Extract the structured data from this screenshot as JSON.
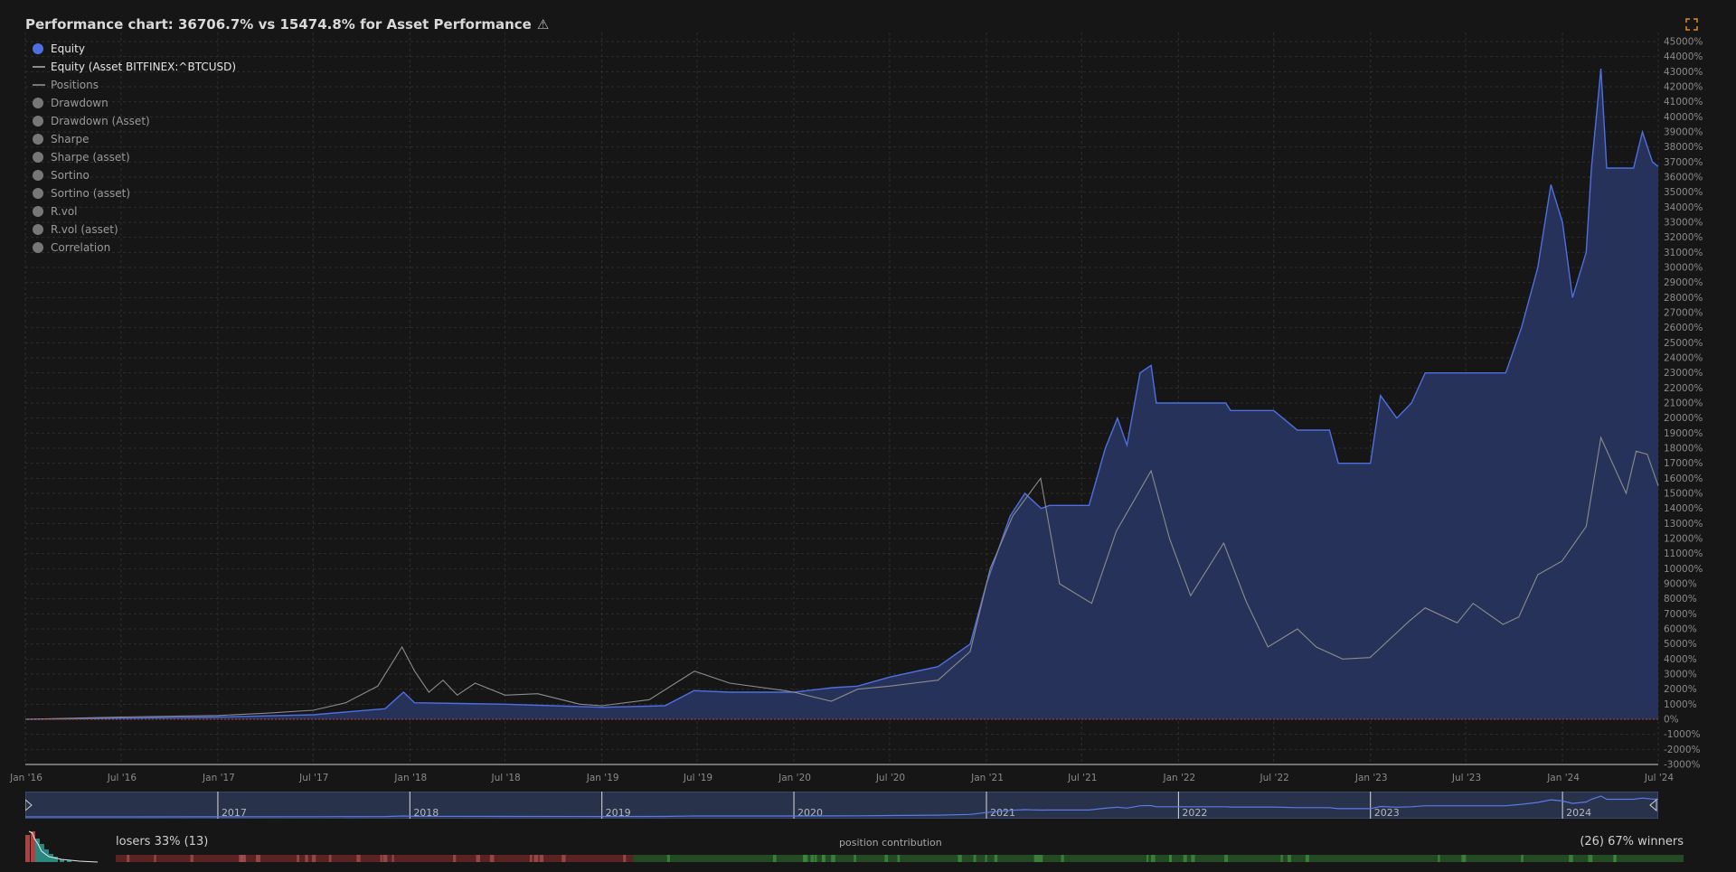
{
  "title": "Performance chart: 36706.7% vs 15474.8% for Asset Performance",
  "legend": [
    {
      "label": "Equity",
      "color": "#4f6fe0",
      "kind": "dot",
      "active": true
    },
    {
      "label": "Equity (Asset BITFINEX:^BTCUSD)",
      "color": "#8a8a8a",
      "kind": "line",
      "active": true
    },
    {
      "label": "Positions",
      "color": "#777777",
      "kind": "line",
      "active": false
    },
    {
      "label": "Drawdown",
      "kind": "dot",
      "active": false
    },
    {
      "label": "Drawdown (Asset)",
      "kind": "dot",
      "active": false
    },
    {
      "label": "Sharpe",
      "kind": "dot",
      "active": false
    },
    {
      "label": "Sharpe (asset)",
      "kind": "dot",
      "active": false
    },
    {
      "label": "Sortino",
      "kind": "dot",
      "active": false
    },
    {
      "label": "Sortino (asset)",
      "kind": "dot",
      "active": false
    },
    {
      "label": "R.vol",
      "kind": "dot",
      "active": false
    },
    {
      "label": "R.vol (asset)",
      "kind": "dot",
      "active": false
    },
    {
      "label": "Correlation",
      "kind": "dot",
      "active": false
    }
  ],
  "chart_data": {
    "type": "area",
    "ylim": [
      -3000,
      45000
    ],
    "yticks": [
      -3000,
      -2000,
      -1000,
      0,
      1000,
      2000,
      3000,
      4000,
      5000,
      6000,
      7000,
      8000,
      9000,
      10000,
      11000,
      12000,
      13000,
      14000,
      15000,
      16000,
      17000,
      18000,
      19000,
      20000,
      21000,
      22000,
      23000,
      24000,
      25000,
      26000,
      27000,
      28000,
      29000,
      30000,
      31000,
      32000,
      33000,
      34000,
      35000,
      36000,
      37000,
      38000,
      39000,
      40000,
      41000,
      42000,
      43000,
      44000,
      45000
    ],
    "y_unit": "%",
    "xlim": [
      "2016-01-01",
      "2024-07-01"
    ],
    "xticks": [
      {
        "label": "Jan '16",
        "date": "2016-01-01"
      },
      {
        "label": "Jul '16",
        "date": "2016-07-01"
      },
      {
        "label": "Jan '17",
        "date": "2017-01-01"
      },
      {
        "label": "Jul '17",
        "date": "2017-07-01"
      },
      {
        "label": "Jan '18",
        "date": "2018-01-01"
      },
      {
        "label": "Jul '18",
        "date": "2018-07-01"
      },
      {
        "label": "Jan '19",
        "date": "2019-01-01"
      },
      {
        "label": "Jul '19",
        "date": "2019-07-01"
      },
      {
        "label": "Jan '20",
        "date": "2020-01-01"
      },
      {
        "label": "Jul '20",
        "date": "2020-07-01"
      },
      {
        "label": "Jan '21",
        "date": "2021-01-01"
      },
      {
        "label": "Jul '21",
        "date": "2021-07-01"
      },
      {
        "label": "Jan '22",
        "date": "2022-01-01"
      },
      {
        "label": "Jul '22",
        "date": "2022-07-01"
      },
      {
        "label": "Jan '23",
        "date": "2023-01-01"
      },
      {
        "label": "Jul '23",
        "date": "2023-07-01"
      },
      {
        "label": "Jan '24",
        "date": "2024-01-01"
      },
      {
        "label": "Jul '24",
        "date": "2024-07-01"
      }
    ],
    "grid": true,
    "legend_position": "top-left",
    "series": [
      {
        "name": "Equity",
        "color": "#4f6fe0",
        "fill": "#27345e",
        "points": [
          [
            "2016-01-01",
            0
          ],
          [
            "2016-07-01",
            80
          ],
          [
            "2017-01-01",
            150
          ],
          [
            "2017-07-01",
            300
          ],
          [
            "2017-11-15",
            700
          ],
          [
            "2017-12-20",
            1800
          ],
          [
            "2018-01-10",
            1100
          ],
          [
            "2018-07-01",
            1000
          ],
          [
            "2019-01-01",
            800
          ],
          [
            "2019-05-01",
            900
          ],
          [
            "2019-06-25",
            1900
          ],
          [
            "2019-09-01",
            1800
          ],
          [
            "2020-01-01",
            1800
          ],
          [
            "2020-03-15",
            2100
          ],
          [
            "2020-05-01",
            2200
          ],
          [
            "2020-07-01",
            2800
          ],
          [
            "2020-10-01",
            3500
          ],
          [
            "2020-12-01",
            5000
          ],
          [
            "2021-01-01",
            9000
          ],
          [
            "2021-02-15",
            13500
          ],
          [
            "2021-03-15",
            15000
          ],
          [
            "2021-04-15",
            14000
          ],
          [
            "2021-05-01",
            14200
          ],
          [
            "2021-07-15",
            14200
          ],
          [
            "2021-08-15",
            18000
          ],
          [
            "2021-09-07",
            20000
          ],
          [
            "2021-09-25",
            18200
          ],
          [
            "2021-10-20",
            23000
          ],
          [
            "2021-11-10",
            23500
          ],
          [
            "2021-11-20",
            21000
          ],
          [
            "2022-04-01",
            21000
          ],
          [
            "2022-04-10",
            20500
          ],
          [
            "2022-07-01",
            20500
          ],
          [
            "2022-08-15",
            19200
          ],
          [
            "2022-10-15",
            19200
          ],
          [
            "2022-11-01",
            17000
          ],
          [
            "2023-01-01",
            17000
          ],
          [
            "2023-01-20",
            21500
          ],
          [
            "2023-02-20",
            20000
          ],
          [
            "2023-03-20",
            21000
          ],
          [
            "2023-04-15",
            23000
          ],
          [
            "2023-07-01",
            23000
          ],
          [
            "2023-09-15",
            23000
          ],
          [
            "2023-10-15",
            26000
          ],
          [
            "2023-11-15",
            30000
          ],
          [
            "2023-12-10",
            35500
          ],
          [
            "2024-01-01",
            33000
          ],
          [
            "2024-01-20",
            28000
          ],
          [
            "2024-02-15",
            31000
          ],
          [
            "2024-02-25",
            36600
          ],
          [
            "2024-03-14",
            43200
          ],
          [
            "2024-03-25",
            36600
          ],
          [
            "2024-05-15",
            36600
          ],
          [
            "2024-06-01",
            39000
          ],
          [
            "2024-06-20",
            37000
          ],
          [
            "2024-07-01",
            36700
          ]
        ]
      },
      {
        "name": "Equity (Asset BITFINEX:^BTCUSD)",
        "color": "#8c8c8c",
        "points": [
          [
            "2016-01-01",
            0
          ],
          [
            "2016-07-01",
            150
          ],
          [
            "2017-01-01",
            250
          ],
          [
            "2017-04-01",
            400
          ],
          [
            "2017-07-01",
            600
          ],
          [
            "2017-09-01",
            1100
          ],
          [
            "2017-11-01",
            2200
          ],
          [
            "2017-12-17",
            4800
          ],
          [
            "2018-01-10",
            3200
          ],
          [
            "2018-02-06",
            1800
          ],
          [
            "2018-03-05",
            2600
          ],
          [
            "2018-04-01",
            1600
          ],
          [
            "2018-05-05",
            2400
          ],
          [
            "2018-07-01",
            1600
          ],
          [
            "2018-09-01",
            1700
          ],
          [
            "2018-11-20",
            1000
          ],
          [
            "2019-01-01",
            900
          ],
          [
            "2019-04-01",
            1300
          ],
          [
            "2019-06-26",
            3200
          ],
          [
            "2019-09-01",
            2400
          ],
          [
            "2019-12-15",
            1900
          ],
          [
            "2020-01-01",
            1800
          ],
          [
            "2020-03-12",
            1200
          ],
          [
            "2020-05-01",
            2000
          ],
          [
            "2020-07-01",
            2200
          ],
          [
            "2020-10-01",
            2600
          ],
          [
            "2020-12-01",
            4500
          ],
          [
            "2021-01-08",
            10000
          ],
          [
            "2021-02-20",
            13500
          ],
          [
            "2021-04-14",
            16000
          ],
          [
            "2021-05-20",
            9000
          ],
          [
            "2021-07-20",
            7700
          ],
          [
            "2021-09-05",
            12500
          ],
          [
            "2021-11-10",
            16500
          ],
          [
            "2021-12-15",
            12000
          ],
          [
            "2022-01-24",
            8200
          ],
          [
            "2022-03-28",
            11700
          ],
          [
            "2022-05-10",
            7800
          ],
          [
            "2022-06-20",
            4800
          ],
          [
            "2022-08-15",
            6000
          ],
          [
            "2022-09-20",
            4800
          ],
          [
            "2022-11-09",
            4000
          ],
          [
            "2022-12-31",
            4100
          ],
          [
            "2023-03-15",
            6500
          ],
          [
            "2023-04-15",
            7400
          ],
          [
            "2023-06-15",
            6400
          ],
          [
            "2023-07-15",
            7700
          ],
          [
            "2023-09-10",
            6300
          ],
          [
            "2023-10-10",
            6800
          ],
          [
            "2023-11-15",
            9600
          ],
          [
            "2023-12-31",
            10500
          ],
          [
            "2024-02-15",
            12800
          ],
          [
            "2024-03-14",
            18700
          ],
          [
            "2024-05-01",
            15000
          ],
          [
            "2024-05-20",
            17800
          ],
          [
            "2024-06-10",
            17600
          ],
          [
            "2024-07-01",
            15500
          ]
        ]
      }
    ],
    "zero_line_color": "#c0392b"
  },
  "navigator": {
    "years": [
      "2017",
      "2018",
      "2019",
      "2020",
      "2021",
      "2022",
      "2023",
      "2024"
    ],
    "from": "2016-01-01",
    "to": "2024-07-01"
  },
  "bottom": {
    "losers_label": "losers 33% (13)",
    "winners_label": "(26) 67% winners",
    "contribution_label": "position contribution",
    "loser_fraction": 0.33,
    "loser_color": "#5a2222",
    "winner_color": "#244a24"
  },
  "colors": {
    "background": "#161616",
    "grid": "#2e2e2e",
    "axis_text": "#8a8a8a",
    "accent": "#4f6fe0"
  }
}
